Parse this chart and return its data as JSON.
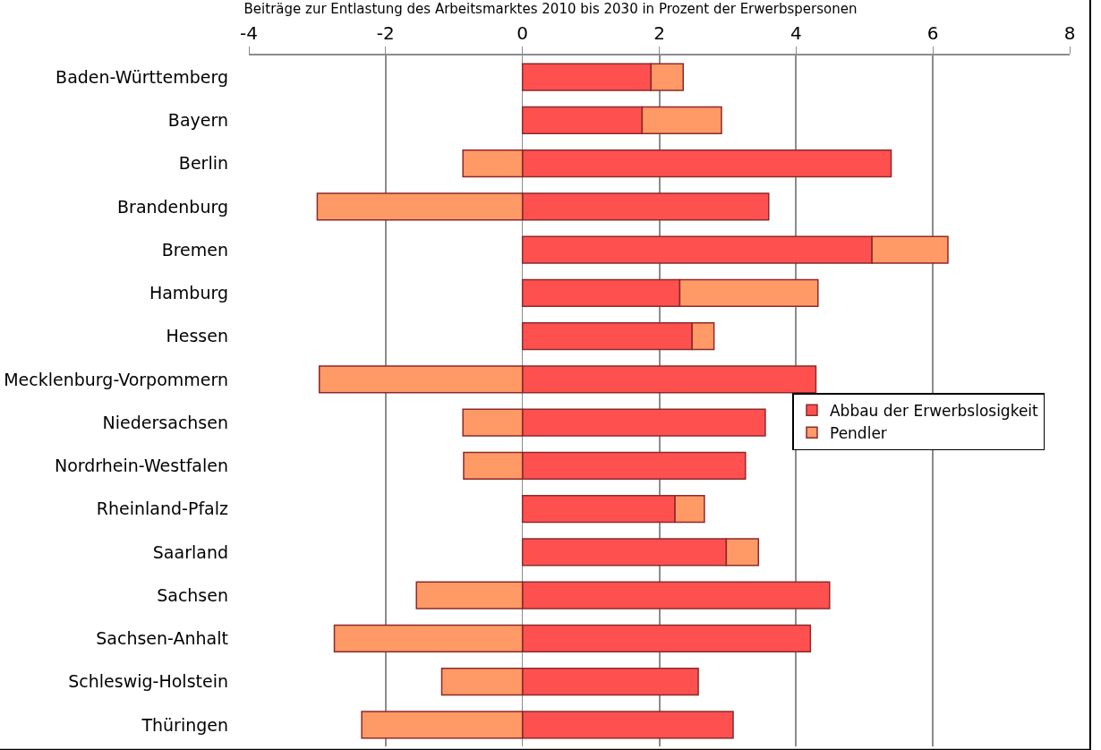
{
  "chart_data": {
    "type": "bar",
    "orientation": "horizontal",
    "stacked": true,
    "title": "Beiträge zur Entlastung des Arbeitsmarktes 2010 bis 2030 in Prozent der Erwerbspersonen",
    "categories": [
      "Baden-Württemberg",
      "Bayern",
      "Berlin",
      "Brandenburg",
      "Bremen",
      "Hamburg",
      "Hessen",
      "Mecklenburg-Vorpommern",
      "Niedersachsen",
      "Nordrhein-Westfalen",
      "Rheinland-Pfalz",
      "Saarland",
      "Sachsen",
      "Sachsen-Anhalt",
      "Schleswig-Holstein",
      "Thüringen"
    ],
    "series": [
      {
        "name": "Abbau der Erwerbslosigkeit",
        "color": "#ff5050",
        "values": [
          1.88,
          1.75,
          5.39,
          3.6,
          5.11,
          2.3,
          2.48,
          4.29,
          3.55,
          3.26,
          2.23,
          2.98,
          4.49,
          4.21,
          2.57,
          3.08
        ]
      },
      {
        "name": "Pendler",
        "color": "#ff9966",
        "values": [
          0.47,
          1.16,
          -0.87,
          -3.0,
          1.11,
          2.02,
          0.32,
          -2.97,
          -0.87,
          -0.86,
          0.43,
          0.47,
          -1.55,
          -2.75,
          -1.18,
          -2.35
        ]
      }
    ],
    "xlim": [
      -4,
      8
    ],
    "xticks": [
      -4,
      -2,
      0,
      2,
      4,
      6,
      8
    ],
    "grid": "x",
    "legend": "right"
  }
}
